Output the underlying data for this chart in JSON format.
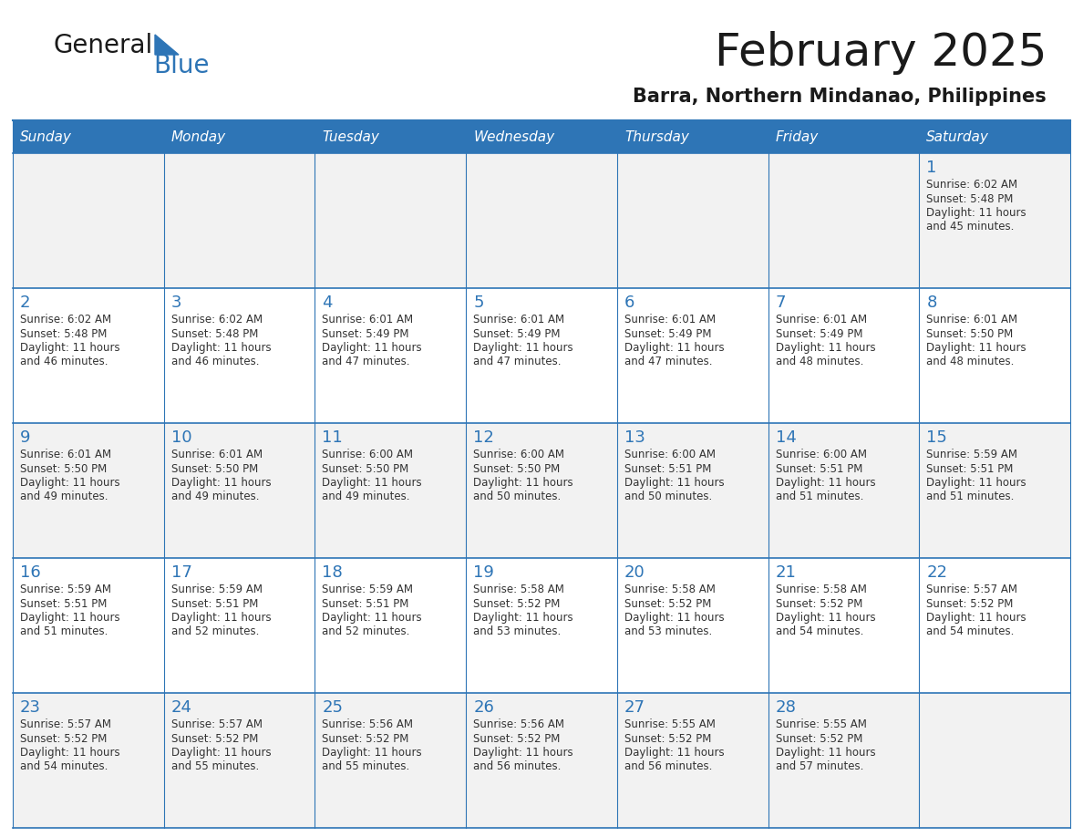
{
  "title": "February 2025",
  "subtitle": "Barra, Northern Mindanao, Philippines",
  "header_bg": "#2E75B6",
  "header_text_color": "#FFFFFF",
  "cell_bg": "#F2F2F2",
  "cell_bg_white": "#FFFFFF",
  "day_names": [
    "Sunday",
    "Monday",
    "Tuesday",
    "Wednesday",
    "Thursday",
    "Friday",
    "Saturday"
  ],
  "title_color": "#1a1a1a",
  "subtitle_color": "#1a1a1a",
  "day_num_color": "#2E75B6",
  "cell_text_color": "#333333",
  "grid_line_color": "#2E75B6",
  "logo_general_color": "#1a1a1a",
  "logo_blue_color": "#2E75B6",
  "calendar_data": [
    [
      null,
      null,
      null,
      null,
      null,
      null,
      {
        "day": 1,
        "sunrise": "6:02 AM",
        "sunset": "5:48 PM",
        "daylight": "11 hours",
        "daylight2": "and 45 minutes."
      }
    ],
    [
      {
        "day": 2,
        "sunrise": "6:02 AM",
        "sunset": "5:48 PM",
        "daylight": "11 hours",
        "daylight2": "and 46 minutes."
      },
      {
        "day": 3,
        "sunrise": "6:02 AM",
        "sunset": "5:48 PM",
        "daylight": "11 hours",
        "daylight2": "and 46 minutes."
      },
      {
        "day": 4,
        "sunrise": "6:01 AM",
        "sunset": "5:49 PM",
        "daylight": "11 hours",
        "daylight2": "and 47 minutes."
      },
      {
        "day": 5,
        "sunrise": "6:01 AM",
        "sunset": "5:49 PM",
        "daylight": "11 hours",
        "daylight2": "and 47 minutes."
      },
      {
        "day": 6,
        "sunrise": "6:01 AM",
        "sunset": "5:49 PM",
        "daylight": "11 hours",
        "daylight2": "and 47 minutes."
      },
      {
        "day": 7,
        "sunrise": "6:01 AM",
        "sunset": "5:49 PM",
        "daylight": "11 hours",
        "daylight2": "and 48 minutes."
      },
      {
        "day": 8,
        "sunrise": "6:01 AM",
        "sunset": "5:50 PM",
        "daylight": "11 hours",
        "daylight2": "and 48 minutes."
      }
    ],
    [
      {
        "day": 9,
        "sunrise": "6:01 AM",
        "sunset": "5:50 PM",
        "daylight": "11 hours",
        "daylight2": "and 49 minutes."
      },
      {
        "day": 10,
        "sunrise": "6:01 AM",
        "sunset": "5:50 PM",
        "daylight": "11 hours",
        "daylight2": "and 49 minutes."
      },
      {
        "day": 11,
        "sunrise": "6:00 AM",
        "sunset": "5:50 PM",
        "daylight": "11 hours",
        "daylight2": "and 49 minutes."
      },
      {
        "day": 12,
        "sunrise": "6:00 AM",
        "sunset": "5:50 PM",
        "daylight": "11 hours",
        "daylight2": "and 50 minutes."
      },
      {
        "day": 13,
        "sunrise": "6:00 AM",
        "sunset": "5:51 PM",
        "daylight": "11 hours",
        "daylight2": "and 50 minutes."
      },
      {
        "day": 14,
        "sunrise": "6:00 AM",
        "sunset": "5:51 PM",
        "daylight": "11 hours",
        "daylight2": "and 51 minutes."
      },
      {
        "day": 15,
        "sunrise": "5:59 AM",
        "sunset": "5:51 PM",
        "daylight": "11 hours",
        "daylight2": "and 51 minutes."
      }
    ],
    [
      {
        "day": 16,
        "sunrise": "5:59 AM",
        "sunset": "5:51 PM",
        "daylight": "11 hours",
        "daylight2": "and 51 minutes."
      },
      {
        "day": 17,
        "sunrise": "5:59 AM",
        "sunset": "5:51 PM",
        "daylight": "11 hours",
        "daylight2": "and 52 minutes."
      },
      {
        "day": 18,
        "sunrise": "5:59 AM",
        "sunset": "5:51 PM",
        "daylight": "11 hours",
        "daylight2": "and 52 minutes."
      },
      {
        "day": 19,
        "sunrise": "5:58 AM",
        "sunset": "5:52 PM",
        "daylight": "11 hours",
        "daylight2": "and 53 minutes."
      },
      {
        "day": 20,
        "sunrise": "5:58 AM",
        "sunset": "5:52 PM",
        "daylight": "11 hours",
        "daylight2": "and 53 minutes."
      },
      {
        "day": 21,
        "sunrise": "5:58 AM",
        "sunset": "5:52 PM",
        "daylight": "11 hours",
        "daylight2": "and 54 minutes."
      },
      {
        "day": 22,
        "sunrise": "5:57 AM",
        "sunset": "5:52 PM",
        "daylight": "11 hours",
        "daylight2": "and 54 minutes."
      }
    ],
    [
      {
        "day": 23,
        "sunrise": "5:57 AM",
        "sunset": "5:52 PM",
        "daylight": "11 hours",
        "daylight2": "and 54 minutes."
      },
      {
        "day": 24,
        "sunrise": "5:57 AM",
        "sunset": "5:52 PM",
        "daylight": "11 hours",
        "daylight2": "and 55 minutes."
      },
      {
        "day": 25,
        "sunrise": "5:56 AM",
        "sunset": "5:52 PM",
        "daylight": "11 hours",
        "daylight2": "and 55 minutes."
      },
      {
        "day": 26,
        "sunrise": "5:56 AM",
        "sunset": "5:52 PM",
        "daylight": "11 hours",
        "daylight2": "and 56 minutes."
      },
      {
        "day": 27,
        "sunrise": "5:55 AM",
        "sunset": "5:52 PM",
        "daylight": "11 hours",
        "daylight2": "and 56 minutes."
      },
      {
        "day": 28,
        "sunrise": "5:55 AM",
        "sunset": "5:52 PM",
        "daylight": "11 hours",
        "daylight2": "and 57 minutes."
      },
      null
    ]
  ]
}
